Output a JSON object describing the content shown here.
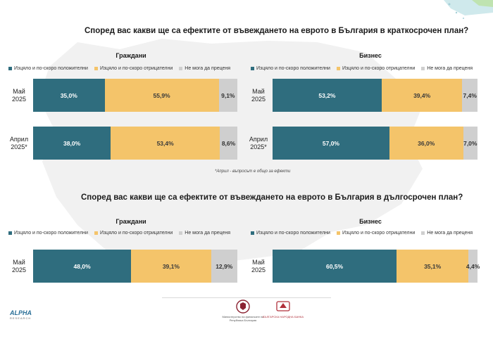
{
  "colors": {
    "positive": "#2f6d7e",
    "negative": "#f4c46a",
    "unsure": "#cfcfcf"
  },
  "legend": [
    "Изцяло и по-скоро положителни",
    "Изцяло и по-скоро отрицателни",
    "Не мога да преценя"
  ],
  "footnote": "*Април - въпросът е общо за ефекти",
  "logos": {
    "alpha": {
      "name": "ALPHA",
      "sub": "RESEARCH"
    },
    "ministry_caption": "Министерство на финансите на Република България",
    "bnb_caption": "БЪЛГАРСКА НАРОДНА БАНКА"
  },
  "chart_data": [
    {
      "type": "bar",
      "orientation": "horizontal-stacked",
      "title": "Според вас какви ще са ефектите от въвеждането на еврото в България в краткосрочен план?",
      "panel": "Граждани",
      "categories": [
        "Май 2025",
        "Април 2025*"
      ],
      "series": [
        {
          "name": "Изцяло и по-скоро положителни",
          "values": [
            35.0,
            38.0
          ],
          "labels": [
            "35,0%",
            "38,0%"
          ]
        },
        {
          "name": "Изцяло и по-скоро отрицателни",
          "values": [
            55.9,
            53.4
          ],
          "labels": [
            "55,9%",
            "53,4%"
          ]
        },
        {
          "name": "Не мога да преценя",
          "values": [
            9.1,
            8.6
          ],
          "labels": [
            "9,1%",
            "8,6%"
          ]
        }
      ],
      "xlim": [
        0,
        100
      ]
    },
    {
      "type": "bar",
      "orientation": "horizontal-stacked",
      "title": "Според вас какви ще са ефектите от въвеждането на еврото в България в краткосрочен план?",
      "panel": "Бизнес",
      "categories": [
        "Май 2025",
        "Април 2025*"
      ],
      "series": [
        {
          "name": "Изцяло и по-скоро положителни",
          "values": [
            53.2,
            57.0
          ],
          "labels": [
            "53,2%",
            "57,0%"
          ]
        },
        {
          "name": "Изцяло и по-скоро отрицателни",
          "values": [
            39.4,
            36.0
          ],
          "labels": [
            "39,4%",
            "36,0%"
          ]
        },
        {
          "name": "Не мога да преценя",
          "values": [
            7.4,
            7.0
          ],
          "labels": [
            "7,4%",
            "7,0%"
          ]
        }
      ],
      "xlim": [
        0,
        100
      ]
    },
    {
      "type": "bar",
      "orientation": "horizontal-stacked",
      "title": "Според вас какви ще са ефектите от въвеждането на еврото в България в дългосрочен план?",
      "panel": "Граждани",
      "categories": [
        "Май 2025"
      ],
      "series": [
        {
          "name": "Изцяло и по-скоро положителни",
          "values": [
            48.0
          ],
          "labels": [
            "48,0%"
          ]
        },
        {
          "name": "Изцяло и по-скоро отрицателни",
          "values": [
            39.1
          ],
          "labels": [
            "39,1%"
          ]
        },
        {
          "name": "Не мога да преценя",
          "values": [
            12.9
          ],
          "labels": [
            "12,9%"
          ]
        }
      ],
      "xlim": [
        0,
        100
      ]
    },
    {
      "type": "bar",
      "orientation": "horizontal-stacked",
      "title": "Според вас какви ще са ефектите от въвеждането на еврото в България в дългосрочен план?",
      "panel": "Бизнес",
      "categories": [
        "Май 2025"
      ],
      "series": [
        {
          "name": "Изцяло и по-скоро положителни",
          "values": [
            60.5
          ],
          "labels": [
            "60,5%"
          ]
        },
        {
          "name": "Изцяло и по-скоро отрицателни",
          "values": [
            35.1
          ],
          "labels": [
            "35,1%"
          ]
        },
        {
          "name": "Не мога да преценя",
          "values": [
            4.4
          ],
          "labels": [
            "4,4%"
          ]
        }
      ],
      "xlim": [
        0,
        100
      ]
    }
  ]
}
